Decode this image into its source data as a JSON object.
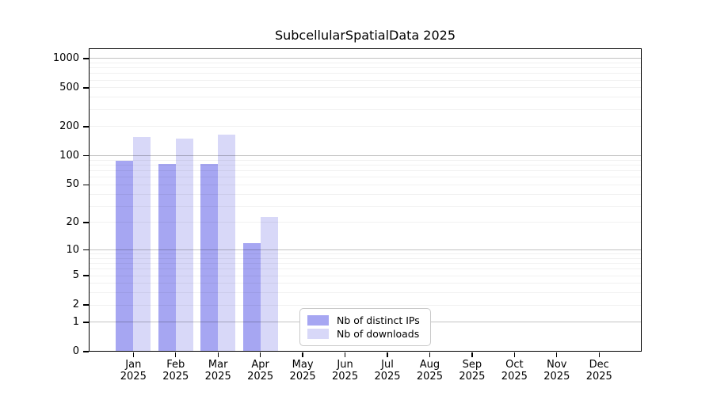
{
  "title": "SubcellularSpatialData 2025",
  "chart_data": {
    "type": "bar",
    "title": "SubcellularSpatialData 2025",
    "y_scale": "log1p",
    "grid": true,
    "legend_position": "bottom-center",
    "months": [
      "Jan",
      "Feb",
      "Mar",
      "Apr",
      "May",
      "Jun",
      "Jul",
      "Aug",
      "Sep",
      "Oct",
      "Nov",
      "Dec"
    ],
    "year_label": "2025",
    "y_ticks": [
      1000,
      500,
      200,
      100,
      50,
      20,
      10,
      5,
      2,
      1,
      0
    ],
    "y_major_gridlines": [
      1,
      10,
      100,
      1000
    ],
    "y_minor_gridlines": [
      2,
      3,
      4,
      5,
      6,
      7,
      8,
      9,
      20,
      30,
      40,
      50,
      60,
      70,
      80,
      90,
      200,
      300,
      400,
      500,
      600,
      700,
      800,
      900
    ],
    "ylim": [
      0,
      1280
    ],
    "xlabel": "",
    "ylabel": "",
    "series": [
      {
        "name": "Nb of distinct IPs",
        "color": "#a6a6f2",
        "values": [
          89,
          82,
          82,
          12,
          0,
          0,
          0,
          0,
          0,
          0,
          0,
          0
        ]
      },
      {
        "name": "Nb of downloads",
        "color": "#d8d8f8",
        "values": [
          156,
          150,
          167,
          23,
          0,
          0,
          0,
          0,
          0,
          0,
          0,
          0
        ]
      }
    ]
  }
}
